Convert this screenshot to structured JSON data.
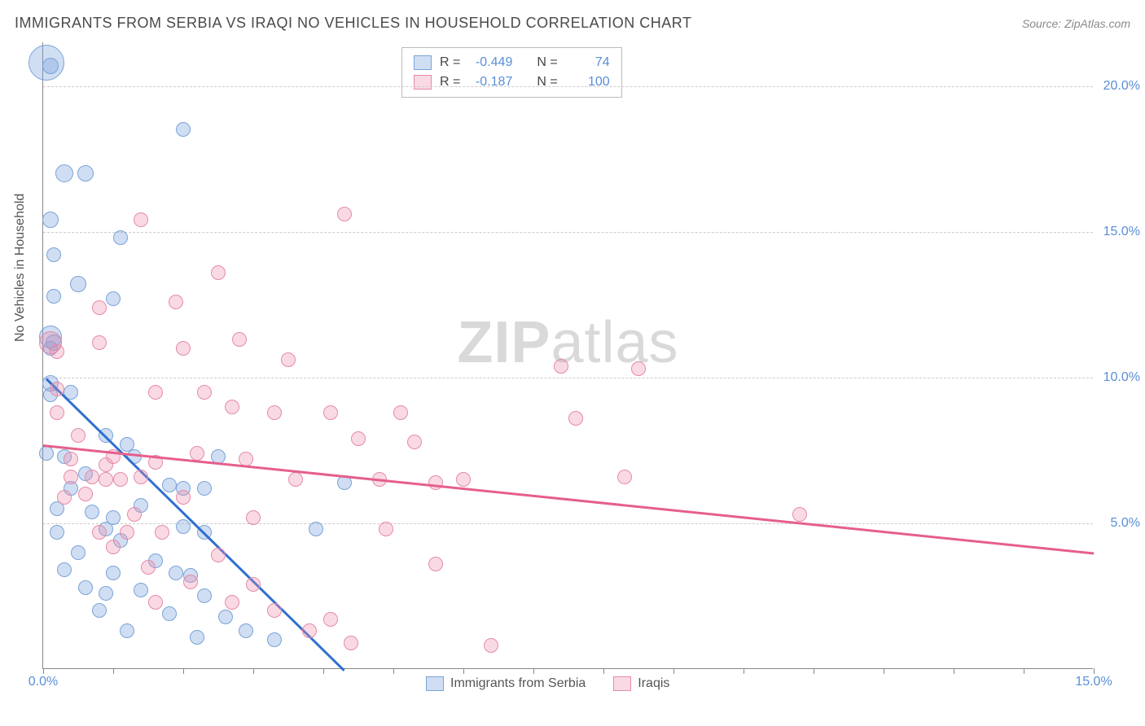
{
  "title": "IMMIGRANTS FROM SERBIA VS IRAQI NO VEHICLES IN HOUSEHOLD CORRELATION CHART",
  "source_label": "Source: ZipAtlas.com",
  "yaxis_title": "No Vehicles in Household",
  "watermark": {
    "bold": "ZIP",
    "light": "atlas"
  },
  "chart": {
    "type": "scatter-with-trend",
    "x_domain": [
      0,
      15
    ],
    "y_domain": [
      0,
      21.5
    ],
    "background_color": "#ffffff",
    "grid_color": "#cccccc",
    "axis_color": "#888888",
    "tick_label_color": "#5a8fd6",
    "axis_title_color": "#555555",
    "title_fontsize": 18,
    "tick_fontsize": 16,
    "y_gridlines": [
      5,
      10,
      15,
      20
    ],
    "y_tick_labels": [
      "5.0%",
      "10.0%",
      "15.0%",
      "20.0%"
    ],
    "x_ticks": [
      0,
      5,
      10,
      15
    ],
    "x_tick_labels": [
      "0.0%",
      "",
      "",
      "15.0%"
    ],
    "x_tick_positions_minor": [
      1,
      2,
      3,
      4,
      6,
      7,
      8,
      9,
      11,
      12,
      13,
      14
    ],
    "series": [
      {
        "name": "Immigrants from Serbia",
        "color_fill": "rgba(120,160,220,0.35)",
        "color_stroke": "#7aa3d8",
        "trend_color": "#2f6fd0",
        "R": "-0.449",
        "N": "74",
        "trend": {
          "x1": 0.05,
          "y1": 10.0,
          "x2": 4.3,
          "y2": 0.0
        },
        "marker_radius_default": 9,
        "points": [
          {
            "x": 0.05,
            "y": 20.8,
            "r": 22
          },
          {
            "x": 0.1,
            "y": 20.7,
            "r": 10
          },
          {
            "x": 2.0,
            "y": 18.5,
            "r": 9
          },
          {
            "x": 0.3,
            "y": 17.0,
            "r": 11
          },
          {
            "x": 0.6,
            "y": 17.0,
            "r": 10
          },
          {
            "x": 0.1,
            "y": 15.4,
            "r": 10
          },
          {
            "x": 1.1,
            "y": 14.8,
            "r": 9
          },
          {
            "x": 0.15,
            "y": 14.2,
            "r": 9
          },
          {
            "x": 0.5,
            "y": 13.2,
            "r": 10
          },
          {
            "x": 0.15,
            "y": 12.8,
            "r": 9
          },
          {
            "x": 1.0,
            "y": 12.7,
            "r": 9
          },
          {
            "x": 0.1,
            "y": 11.4,
            "r": 14
          },
          {
            "x": 0.15,
            "y": 11.2,
            "r": 10
          },
          {
            "x": 0.1,
            "y": 11.0,
            "r": 9
          },
          {
            "x": 0.1,
            "y": 9.8,
            "r": 10
          },
          {
            "x": 0.1,
            "y": 9.4,
            "r": 9
          },
          {
            "x": 0.4,
            "y": 9.5,
            "r": 9
          },
          {
            "x": 0.9,
            "y": 8.0,
            "r": 9
          },
          {
            "x": 0.05,
            "y": 7.4,
            "r": 9
          },
          {
            "x": 0.3,
            "y": 7.3,
            "r": 9
          },
          {
            "x": 1.2,
            "y": 7.7,
            "r": 9
          },
          {
            "x": 1.3,
            "y": 7.3,
            "r": 9
          },
          {
            "x": 2.5,
            "y": 7.3,
            "r": 9
          },
          {
            "x": 0.6,
            "y": 6.7,
            "r": 9
          },
          {
            "x": 0.4,
            "y": 6.2,
            "r": 9
          },
          {
            "x": 1.8,
            "y": 6.3,
            "r": 9
          },
          {
            "x": 2.0,
            "y": 6.2,
            "r": 9
          },
          {
            "x": 2.3,
            "y": 6.2,
            "r": 9
          },
          {
            "x": 4.3,
            "y": 6.4,
            "r": 9
          },
          {
            "x": 0.2,
            "y": 5.5,
            "r": 9
          },
          {
            "x": 0.7,
            "y": 5.4,
            "r": 9
          },
          {
            "x": 1.0,
            "y": 5.2,
            "r": 9
          },
          {
            "x": 1.4,
            "y": 5.6,
            "r": 9
          },
          {
            "x": 0.2,
            "y": 4.7,
            "r": 9
          },
          {
            "x": 0.9,
            "y": 4.8,
            "r": 9
          },
          {
            "x": 1.1,
            "y": 4.4,
            "r": 9
          },
          {
            "x": 2.0,
            "y": 4.9,
            "r": 9
          },
          {
            "x": 2.3,
            "y": 4.7,
            "r": 9
          },
          {
            "x": 0.5,
            "y": 4.0,
            "r": 9
          },
          {
            "x": 1.6,
            "y": 3.7,
            "r": 9
          },
          {
            "x": 0.3,
            "y": 3.4,
            "r": 9
          },
          {
            "x": 1.0,
            "y": 3.3,
            "r": 9
          },
          {
            "x": 1.9,
            "y": 3.3,
            "r": 9
          },
          {
            "x": 2.1,
            "y": 3.2,
            "r": 9
          },
          {
            "x": 0.6,
            "y": 2.8,
            "r": 9
          },
          {
            "x": 0.9,
            "y": 2.6,
            "r": 9
          },
          {
            "x": 1.4,
            "y": 2.7,
            "r": 9
          },
          {
            "x": 2.3,
            "y": 2.5,
            "r": 9
          },
          {
            "x": 3.9,
            "y": 4.8,
            "r": 9
          },
          {
            "x": 0.8,
            "y": 2.0,
            "r": 9
          },
          {
            "x": 1.8,
            "y": 1.9,
            "r": 9
          },
          {
            "x": 2.6,
            "y": 1.8,
            "r": 9
          },
          {
            "x": 1.2,
            "y": 1.3,
            "r": 9
          },
          {
            "x": 2.2,
            "y": 1.1,
            "r": 9
          },
          {
            "x": 2.9,
            "y": 1.3,
            "r": 9
          },
          {
            "x": 3.3,
            "y": 1.0,
            "r": 9
          }
        ]
      },
      {
        "name": "Iraqis",
        "color_fill": "rgba(235,140,170,0.32)",
        "color_stroke": "#e68aa8",
        "trend_color": "#e65f8a",
        "R": "-0.187",
        "N": "100",
        "trend": {
          "x1": 0.0,
          "y1": 7.7,
          "x2": 15.0,
          "y2": 4.0
        },
        "marker_radius_default": 9,
        "points": [
          {
            "x": 0.1,
            "y": 11.2,
            "r": 14
          },
          {
            "x": 1.4,
            "y": 15.4,
            "r": 9
          },
          {
            "x": 4.3,
            "y": 15.6,
            "r": 9
          },
          {
            "x": 0.8,
            "y": 12.4,
            "r": 9
          },
          {
            "x": 1.9,
            "y": 12.6,
            "r": 9
          },
          {
            "x": 2.5,
            "y": 13.6,
            "r": 9
          },
          {
            "x": 0.2,
            "y": 10.9,
            "r": 9
          },
          {
            "x": 0.8,
            "y": 11.2,
            "r": 9
          },
          {
            "x": 2.0,
            "y": 11.0,
            "r": 9
          },
          {
            "x": 2.8,
            "y": 11.3,
            "r": 9
          },
          {
            "x": 3.5,
            "y": 10.6,
            "r": 9
          },
          {
            "x": 7.4,
            "y": 10.4,
            "r": 9
          },
          {
            "x": 8.5,
            "y": 10.3,
            "r": 9
          },
          {
            "x": 0.2,
            "y": 9.6,
            "r": 9
          },
          {
            "x": 1.6,
            "y": 9.5,
            "r": 9
          },
          {
            "x": 2.3,
            "y": 9.5,
            "r": 9
          },
          {
            "x": 0.2,
            "y": 8.8,
            "r": 9
          },
          {
            "x": 2.7,
            "y": 9.0,
            "r": 9
          },
          {
            "x": 3.3,
            "y": 8.8,
            "r": 9
          },
          {
            "x": 4.1,
            "y": 8.8,
            "r": 9
          },
          {
            "x": 5.1,
            "y": 8.8,
            "r": 9
          },
          {
            "x": 7.6,
            "y": 8.6,
            "r": 9
          },
          {
            "x": 0.5,
            "y": 8.0,
            "r": 9
          },
          {
            "x": 4.5,
            "y": 7.9,
            "r": 9
          },
          {
            "x": 5.3,
            "y": 7.8,
            "r": 9
          },
          {
            "x": 0.4,
            "y": 7.2,
            "r": 9
          },
          {
            "x": 0.9,
            "y": 7.0,
            "r": 9
          },
          {
            "x": 1.0,
            "y": 7.3,
            "r": 9
          },
          {
            "x": 1.6,
            "y": 7.1,
            "r": 9
          },
          {
            "x": 2.2,
            "y": 7.4,
            "r": 9
          },
          {
            "x": 2.9,
            "y": 7.2,
            "r": 9
          },
          {
            "x": 0.4,
            "y": 6.6,
            "r": 9
          },
          {
            "x": 0.7,
            "y": 6.6,
            "r": 9
          },
          {
            "x": 0.9,
            "y": 6.5,
            "r": 9
          },
          {
            "x": 1.1,
            "y": 6.5,
            "r": 9
          },
          {
            "x": 1.4,
            "y": 6.6,
            "r": 9
          },
          {
            "x": 3.6,
            "y": 6.5,
            "r": 9
          },
          {
            "x": 4.8,
            "y": 6.5,
            "r": 9
          },
          {
            "x": 5.6,
            "y": 6.4,
            "r": 9
          },
          {
            "x": 6.0,
            "y": 6.5,
            "r": 9
          },
          {
            "x": 8.3,
            "y": 6.6,
            "r": 9
          },
          {
            "x": 0.3,
            "y": 5.9,
            "r": 9
          },
          {
            "x": 0.6,
            "y": 6.0,
            "r": 9
          },
          {
            "x": 2.0,
            "y": 5.9,
            "r": 9
          },
          {
            "x": 1.3,
            "y": 5.3,
            "r": 9
          },
          {
            "x": 3.0,
            "y": 5.2,
            "r": 9
          },
          {
            "x": 10.8,
            "y": 5.3,
            "r": 9
          },
          {
            "x": 0.8,
            "y": 4.7,
            "r": 9
          },
          {
            "x": 1.2,
            "y": 4.7,
            "r": 9
          },
          {
            "x": 1.7,
            "y": 4.7,
            "r": 9
          },
          {
            "x": 1.0,
            "y": 4.2,
            "r": 9
          },
          {
            "x": 2.5,
            "y": 3.9,
            "r": 9
          },
          {
            "x": 1.5,
            "y": 3.5,
            "r": 9
          },
          {
            "x": 4.9,
            "y": 4.8,
            "r": 9
          },
          {
            "x": 5.6,
            "y": 3.6,
            "r": 9
          },
          {
            "x": 2.1,
            "y": 3.0,
            "r": 9
          },
          {
            "x": 3.0,
            "y": 2.9,
            "r": 9
          },
          {
            "x": 1.6,
            "y": 2.3,
            "r": 9
          },
          {
            "x": 2.7,
            "y": 2.3,
            "r": 9
          },
          {
            "x": 3.3,
            "y": 2.0,
            "r": 9
          },
          {
            "x": 3.8,
            "y": 1.3,
            "r": 9
          },
          {
            "x": 4.1,
            "y": 1.7,
            "r": 9
          },
          {
            "x": 4.4,
            "y": 0.9,
            "r": 9
          },
          {
            "x": 6.4,
            "y": 0.8,
            "r": 9
          }
        ]
      }
    ]
  },
  "stats_box": {
    "row_labels": [
      "R =",
      "N ="
    ],
    "border_color": "#bbbbbb",
    "value_color": "#5a8fd6",
    "swatch_border_colors": [
      "#7aa3d8",
      "#e68aa8"
    ],
    "swatch_fill_colors": [
      "rgba(120,160,220,0.35)",
      "rgba(235,140,170,0.32)"
    ]
  },
  "bottom_legend": {
    "items": [
      "Immigrants from Serbia",
      "Iraqis"
    ]
  }
}
